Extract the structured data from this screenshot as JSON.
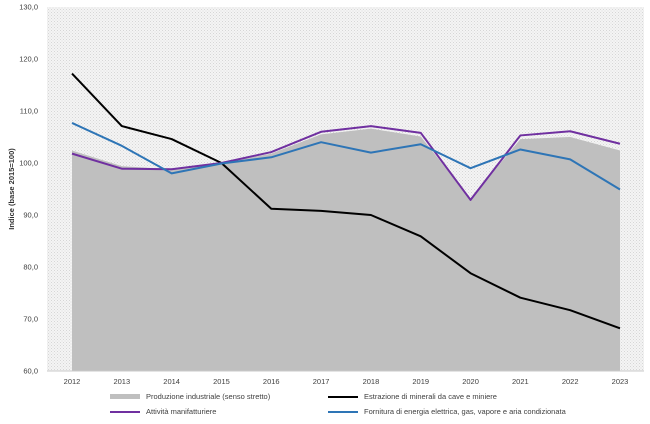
{
  "chart_data": {
    "type": "line",
    "title": "",
    "xlabel": "",
    "ylabel": "Indice (base 2015=100)",
    "ylim": [
      60,
      130
    ],
    "yticks": [
      "60,0",
      "70,0",
      "80,0",
      "90,0",
      "100,0",
      "110,0",
      "120,0",
      "130,0"
    ],
    "categories": [
      "2012",
      "2013",
      "2014",
      "2015",
      "2016",
      "2017",
      "2018",
      "2019",
      "2020",
      "2021",
      "2022",
      "2023"
    ],
    "grid": false,
    "legend_position": "bottom",
    "series": [
      {
        "name": "Produzione industriale (senso stretto)",
        "type": "area",
        "color": "#bfbfbf",
        "values": [
          102.4,
          99.4,
          98.8,
          100.0,
          101.8,
          105.5,
          106.6,
          105.1,
          93.0,
          104.6,
          105.0,
          102.4
        ]
      },
      {
        "name": "Estrazione di minerali da cave e miniere",
        "type": "line",
        "color": "#000000",
        "values": [
          117.2,
          107.1,
          104.6,
          100.0,
          91.2,
          90.8,
          90.0,
          85.9,
          78.8,
          74.1,
          71.7,
          68.2
        ]
      },
      {
        "name": "Attività manifatturiere",
        "type": "line",
        "color": "#7030a0",
        "values": [
          101.8,
          98.9,
          98.8,
          100.0,
          102.1,
          106.0,
          107.1,
          105.8,
          92.9,
          105.3,
          106.1,
          103.7
        ]
      },
      {
        "name": "Fornitura di energia elettrica, gas, vapore e aria condizionata",
        "type": "line",
        "color": "#2e75b6",
        "values": [
          107.7,
          103.3,
          98.0,
          99.9,
          101.1,
          104.0,
          102.0,
          103.6,
          99.0,
          102.6,
          100.7,
          94.9
        ]
      }
    ]
  }
}
